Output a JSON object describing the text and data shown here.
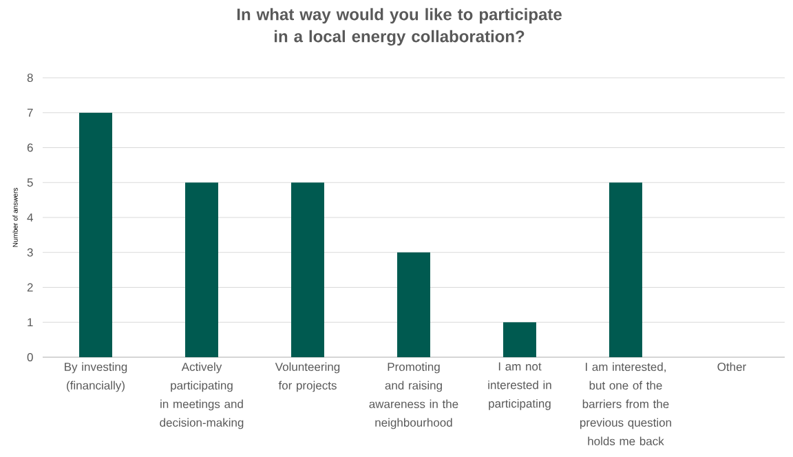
{
  "chart_data": {
    "type": "bar",
    "title": "In what way would you like to participate in a local energy collaboration?",
    "ylabel": "Number of answers",
    "categories": [
      "By investing (financially)",
      "Actively participating in meetings and decision-making",
      "Volunteering for projects",
      "Promoting and raising awareness in the neighbourhood",
      "I am not interested in participating",
      "I am interested, but one of the barriers from the previous question holds me back",
      "Other"
    ],
    "values": [
      7,
      5,
      5,
      3,
      1,
      5,
      0
    ],
    "color": "#005a50",
    "ylim": [
      0,
      8
    ],
    "yticks": [
      0,
      1,
      2,
      3,
      4,
      5,
      6,
      7,
      8
    ],
    "grid": "y"
  }
}
